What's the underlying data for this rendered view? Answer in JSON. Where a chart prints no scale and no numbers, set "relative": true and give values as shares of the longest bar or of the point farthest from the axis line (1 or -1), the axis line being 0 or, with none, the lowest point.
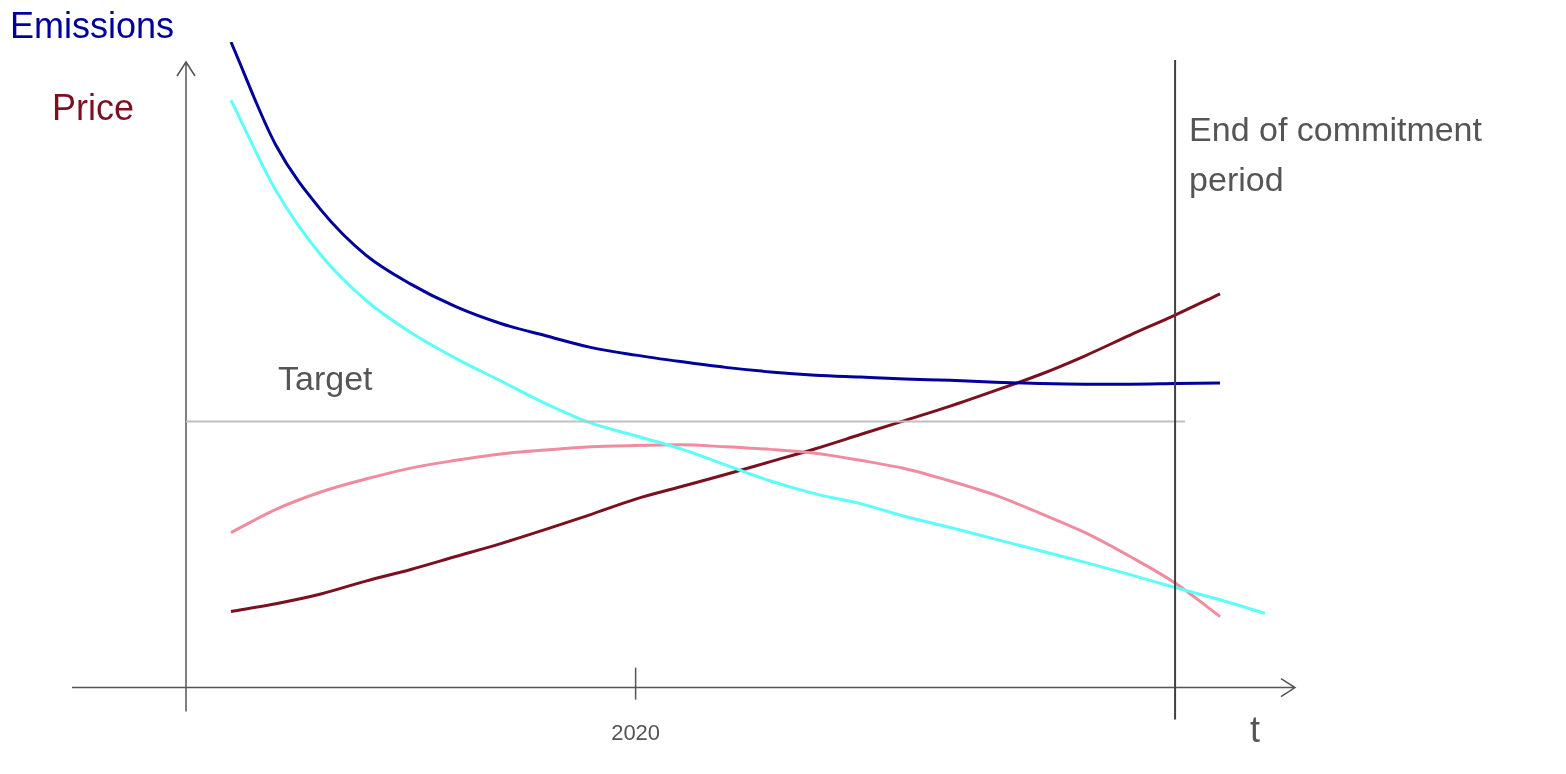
{
  "chart_data": {
    "type": "line",
    "ylabel": "Emissions",
    "xlabel": "t",
    "relative": true,
    "grid": false,
    "legend": false,
    "marker": "none",
    "line_style": "solid",
    "categories": [
      null,
      null,
      null,
      null,
      null,
      null,
      null,
      null,
      null,
      null,
      null,
      null,
      null,
      null,
      null,
      null,
      null,
      null,
      null,
      null,
      null,
      null,
      null,
      null,
      null
    ],
    "annotations": [
      "Price",
      "2020",
      "End of commitment period"
    ],
    "ref_lines": [
      {
        "axis": "y",
        "value": 0.412,
        "label": "Target",
        "color": "#c0c0c0"
      }
    ],
    "series": [
      {
        "color": "#00009a",
        "values": [
          null,
          1,
          0.84,
          0.74,
          0.67,
          0.625,
          0.59,
          0.564,
          0.545,
          0.527,
          0.515,
          0.505,
          0.496,
          0.489,
          0.484,
          0.481,
          0.478,
          0.476,
          0.473,
          0.471,
          0.47,
          0.47,
          0.471,
          0.472,
          null
        ]
      },
      {
        "color": "#5ffcfc",
        "values": [
          null,
          0.91,
          0.77,
          0.67,
          0.6,
          0.55,
          0.51,
          0.475,
          0.44,
          0.41,
          0.39,
          0.37,
          0.345,
          0.32,
          0.3,
          0.285,
          0.265,
          0.248,
          0.23,
          0.212,
          0.194,
          0.175,
          0.155,
          0.136,
          0.115
        ]
      },
      {
        "color": "#f08ca0",
        "values": [
          null,
          0.24,
          0.276,
          0.303,
          0.323,
          0.34,
          0.352,
          0.362,
          0.368,
          0.373,
          0.375,
          0.376,
          0.373,
          0.369,
          0.363,
          0.352,
          0.339,
          0.32,
          0.298,
          0.27,
          0.24,
          0.203,
          0.162,
          0.11,
          null
        ]
      },
      {
        "color": "#7a1020",
        "values": [
          null,
          0.118,
          0.13,
          0.145,
          0.165,
          0.183,
          0.203,
          0.223,
          0.245,
          0.268,
          0.292,
          0.311,
          0.33,
          0.35,
          0.37,
          0.392,
          0.414,
          0.436,
          0.46,
          0.485,
          0.514,
          0.546,
          0.577,
          0.61,
          null
        ]
      }
    ]
  }
}
